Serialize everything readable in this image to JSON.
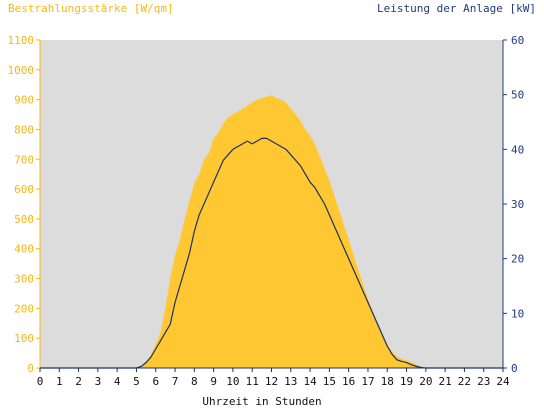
{
  "chart_data": {
    "type": "area",
    "left_axis_title": "Bestrahlungsstärke [W/qm]",
    "right_axis_title": "Leistung der Anlage [kW]",
    "xlabel": "Uhrzeit in Stunden",
    "x_ticks": [
      "0",
      "1",
      "2",
      "3",
      "4",
      "5",
      "6",
      "7",
      "8",
      "9",
      "10",
      "11",
      "12",
      "13",
      "14",
      "15",
      "16",
      "17",
      "18",
      "19",
      "20",
      "21",
      "22",
      "23",
      "24"
    ],
    "y_left_ticks": [
      "0",
      "100",
      "200",
      "300",
      "400",
      "500",
      "600",
      "700",
      "800",
      "900",
      "1000",
      "1100"
    ],
    "y_right_ticks": [
      "0",
      "10",
      "20",
      "30",
      "40",
      "50",
      "60"
    ],
    "xlim": [
      0,
      24
    ],
    "ylim_left": [
      0,
      1100
    ],
    "ylim_right": [
      0,
      60
    ],
    "colors": {
      "plot_background": "#dcdcdc",
      "irradiance_fill": "#ffc832",
      "power_line": "#1f2f5f",
      "left_axis": "#f5b914",
      "right_axis": "#1f3a80"
    },
    "series": [
      {
        "name": "Bestrahlungsstärke",
        "axis": "left",
        "kind": "area",
        "x": [
          0,
          5,
          5.25,
          5.5,
          5.75,
          6,
          6.25,
          6.5,
          6.75,
          7,
          7.25,
          7.5,
          7.75,
          8,
          8.25,
          8.5,
          8.75,
          9,
          9.25,
          9.5,
          9.75,
          10,
          10.25,
          10.5,
          10.75,
          11,
          11.25,
          11.5,
          11.75,
          12,
          12.25,
          12.5,
          12.75,
          13,
          13.25,
          13.5,
          13.75,
          14,
          14.25,
          14.5,
          14.75,
          15,
          15.25,
          15.5,
          15.75,
          16,
          16.25,
          16.5,
          16.75,
          17,
          17.25,
          17.5,
          17.75,
          18,
          18.25,
          18.5,
          18.75,
          19,
          19.25,
          19.5,
          19.75,
          20,
          24
        ],
        "values": [
          0,
          0,
          5,
          20,
          45,
          80,
          120,
          200,
          300,
          380,
          430,
          500,
          560,
          620,
          650,
          700,
          720,
          770,
          790,
          820,
          840,
          850,
          860,
          870,
          880,
          890,
          900,
          905,
          910,
          915,
          905,
          900,
          890,
          870,
          850,
          830,
          800,
          780,
          750,
          710,
          670,
          630,
          580,
          530,
          480,
          430,
          380,
          330,
          280,
          230,
          190,
          150,
          110,
          80,
          55,
          40,
          30,
          25,
          20,
          12,
          5,
          0,
          0
        ]
      },
      {
        "name": "Leistung der Anlage",
        "axis": "right",
        "kind": "line",
        "x": [
          0,
          5,
          5.25,
          5.5,
          5.75,
          6,
          6.25,
          6.5,
          6.75,
          7,
          7.25,
          7.5,
          7.75,
          8,
          8.25,
          8.5,
          8.75,
          9,
          9.25,
          9.5,
          9.75,
          10,
          10.25,
          10.5,
          10.75,
          11,
          11.25,
          11.5,
          11.75,
          12,
          12.25,
          12.5,
          12.75,
          13,
          13.25,
          13.5,
          13.75,
          14,
          14.25,
          14.5,
          14.75,
          15,
          15.25,
          15.5,
          15.75,
          16,
          16.25,
          16.5,
          16.75,
          17,
          17.25,
          17.5,
          17.75,
          18,
          18.25,
          18.5,
          18.75,
          19,
          19.25,
          19.5,
          19.75,
          20,
          24
        ],
        "values": [
          0,
          0,
          0.3,
          1,
          2,
          3.5,
          5,
          6.5,
          8,
          12,
          15,
          18,
          21,
          25,
          28,
          30,
          32,
          34,
          36,
          38,
          39,
          40,
          40.5,
          41,
          41.5,
          41,
          41.5,
          42,
          42,
          41.5,
          41,
          40.5,
          40,
          39,
          38,
          37,
          35.5,
          34,
          33,
          31.5,
          30,
          28,
          26,
          24,
          22,
          20,
          18,
          16,
          14,
          12,
          10,
          8,
          6,
          4,
          2.5,
          1.5,
          1.2,
          1,
          0.6,
          0.3,
          0.1,
          0,
          0
        ]
      }
    ]
  }
}
